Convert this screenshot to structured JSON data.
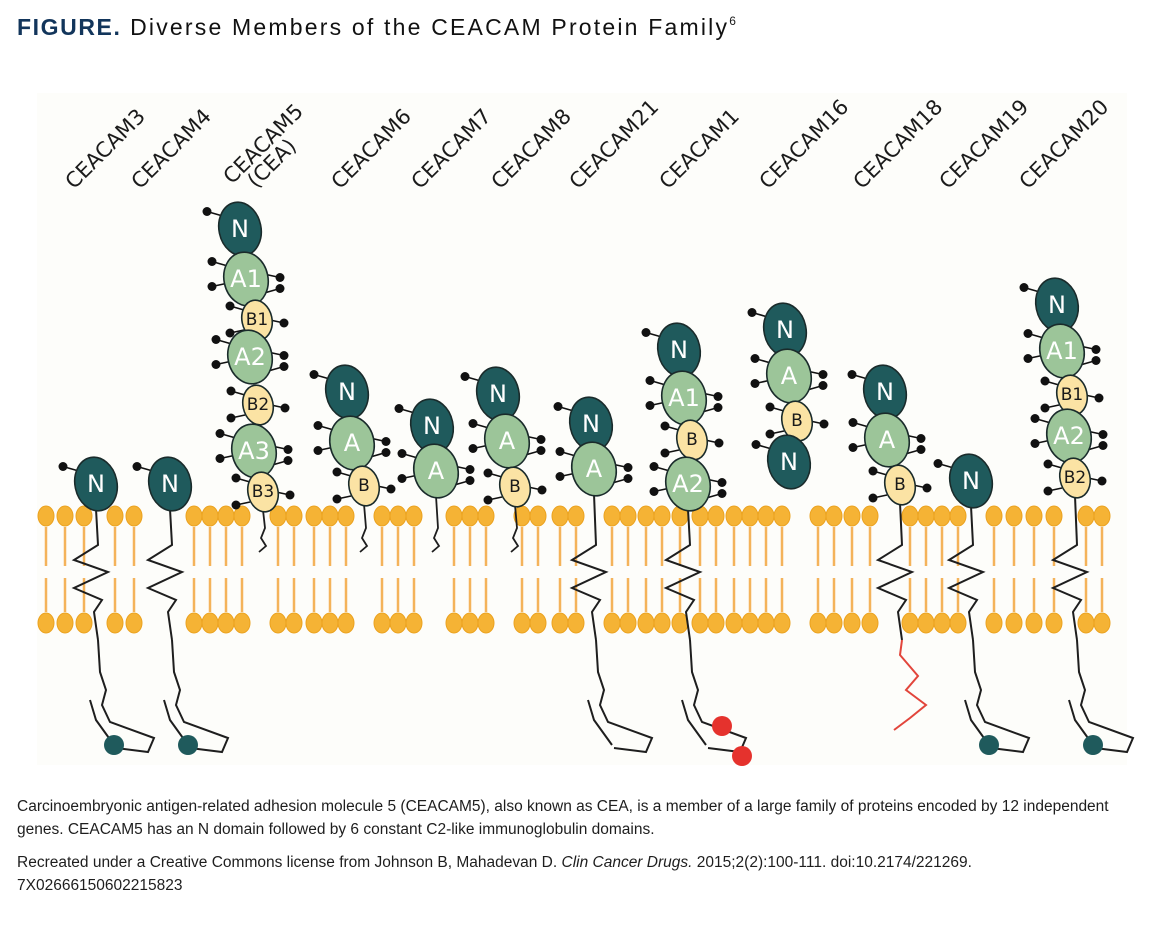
{
  "header": {
    "figure_label": "FIGURE.",
    "title": "Diverse Members of the CEACAM Protein Family",
    "reference_superscript": "6"
  },
  "colors": {
    "title_label": "#12355b",
    "n_domain": "#1f5a5c",
    "a_domain": "#9cc599",
    "b_domain": "#fbe3a4",
    "lipid_head": "#f5b335",
    "lipid_tail": "#f4b35a",
    "glycan": "#111111",
    "itim_motif": "#e5322d",
    "itam_motif": "#1f5a5c",
    "ceacam18_tail": "#e2453b",
    "panel_bg": "#fdfdfa"
  },
  "diagram": {
    "members": [
      {
        "label": "CEACAM3",
        "domains": [
          "N"
        ],
        "anchor": "transmembrane",
        "tail_motifs": 1,
        "tail_motif_type": "itam"
      },
      {
        "label": "CEACAM4",
        "domains": [
          "N"
        ],
        "anchor": "transmembrane",
        "tail_motifs": 1,
        "tail_motif_type": "itam"
      },
      {
        "label": "CEACAM5",
        "label2": "(CEA)",
        "domains": [
          "N",
          "A1",
          "B1",
          "A2",
          "B2",
          "A3",
          "B3"
        ],
        "anchor": "gpi",
        "tail_motifs": 0
      },
      {
        "label": "CEACAM6",
        "domains": [
          "N",
          "A",
          "B"
        ],
        "anchor": "gpi",
        "tail_motifs": 0
      },
      {
        "label": "CEACAM7",
        "domains": [
          "N",
          "A"
        ],
        "anchor": "gpi",
        "tail_motifs": 0
      },
      {
        "label": "CEACAM8",
        "domains": [
          "N",
          "A",
          "B"
        ],
        "anchor": "gpi",
        "tail_motifs": 0
      },
      {
        "label": "CEACAM21",
        "domains": [
          "N",
          "A"
        ],
        "anchor": "transmembrane",
        "tail_motifs": 0
      },
      {
        "label": "CEACAM1",
        "domains": [
          "N",
          "A1",
          "B",
          "A2"
        ],
        "anchor": "transmembrane",
        "tail_motifs": 2,
        "tail_motif_type": "itim"
      },
      {
        "label": "CEACAM16",
        "domains": [
          "N",
          "A",
          "B",
          "N"
        ],
        "anchor": "secreted",
        "tail_motifs": 0
      },
      {
        "label": "CEACAM18",
        "domains": [
          "N",
          "A",
          "B"
        ],
        "anchor": "transmembrane",
        "tail_motifs": 0,
        "tail_color": "red"
      },
      {
        "label": "CEACAM19",
        "domains": [
          "N"
        ],
        "anchor": "transmembrane",
        "tail_motifs": 1,
        "tail_motif_type": "itam"
      },
      {
        "label": "CEACAM20",
        "domains": [
          "N",
          "A1",
          "B1",
          "A2",
          "B2"
        ],
        "anchor": "transmembrane",
        "tail_motifs": 1,
        "tail_motif_type": "itam"
      }
    ]
  },
  "caption": "Carcinoembryonic antigen-related adhesion molecule 5 (CEACAM5), also known as CEA, is a member of a large family of proteins encoded by 12 independent genes. CEACAM5 has an N domain followed by 6 constant C2-like immunoglobulin domains.",
  "credit": {
    "prefix": "Recreated under a Creative Commons license from Johnson B, Mahadevan D.",
    "journal": "Clin Cancer Drugs.",
    "suffix": "2015;2(2):100-111. doi:10.2174/221269.",
    "code": "7X02666150602215823"
  }
}
